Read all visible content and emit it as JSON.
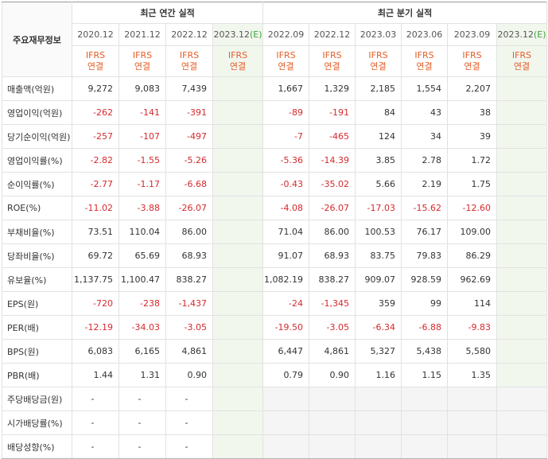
{
  "header": {
    "row_label": "주요재무정보",
    "annual_title": "최근 연간 실적",
    "quarter_title": "최근 분기 실적",
    "annual_periods": [
      "2020.12",
      "2021.12",
      "2022.12",
      "2023.12"
    ],
    "annual_estimate_mark": "(E)",
    "quarter_periods": [
      "2022.09",
      "2022.12",
      "2023.03",
      "2023.06",
      "2023.09",
      "2023.12"
    ],
    "quarter_estimate_mark": "(E)",
    "basis_line1": "IFRS",
    "basis_line2": "연결"
  },
  "rows": [
    {
      "label": "매출액(억원)",
      "annual": [
        "9,272",
        "9,083",
        "7,439",
        ""
      ],
      "quarter": [
        "1,667",
        "1,329",
        "2,185",
        "1,554",
        "2,207",
        ""
      ]
    },
    {
      "label": "영업이익(억원)",
      "annual": [
        "-262",
        "-141",
        "-391",
        ""
      ],
      "quarter": [
        "-89",
        "-191",
        "84",
        "43",
        "38",
        ""
      ]
    },
    {
      "label": "당기순이익(억원)",
      "annual": [
        "-257",
        "-107",
        "-497",
        ""
      ],
      "quarter": [
        "-7",
        "-465",
        "124",
        "34",
        "39",
        ""
      ]
    },
    {
      "label": "영업이익률(%)",
      "annual": [
        "-2.82",
        "-1.55",
        "-5.26",
        ""
      ],
      "quarter": [
        "-5.36",
        "-14.39",
        "3.85",
        "2.78",
        "1.72",
        ""
      ]
    },
    {
      "label": "순이익률(%)",
      "annual": [
        "-2.77",
        "-1.17",
        "-6.68",
        ""
      ],
      "quarter": [
        "-0.43",
        "-35.02",
        "5.66",
        "2.19",
        "1.75",
        ""
      ]
    },
    {
      "label": "ROE(%)",
      "annual": [
        "-11.02",
        "-3.88",
        "-26.07",
        ""
      ],
      "quarter": [
        "-4.08",
        "-26.07",
        "-17.03",
        "-15.62",
        "-12.60",
        ""
      ]
    },
    {
      "label": "부채비율(%)",
      "annual": [
        "73.51",
        "110.04",
        "86.00",
        ""
      ],
      "quarter": [
        "71.04",
        "86.00",
        "100.53",
        "76.17",
        "109.00",
        ""
      ]
    },
    {
      "label": "당좌비율(%)",
      "annual": [
        "69.72",
        "65.69",
        "68.93",
        ""
      ],
      "quarter": [
        "91.07",
        "68.93",
        "83.75",
        "79.83",
        "86.29",
        ""
      ]
    },
    {
      "label": "유보율(%)",
      "annual": [
        "1,137.75",
        "1,100.47",
        "838.27",
        ""
      ],
      "quarter": [
        "1,082.19",
        "838.27",
        "909.07",
        "928.59",
        "962.69",
        ""
      ]
    },
    {
      "label": "EPS(원)",
      "annual": [
        "-720",
        "-238",
        "-1,437",
        ""
      ],
      "quarter": [
        "-24",
        "-1,345",
        "359",
        "99",
        "114",
        ""
      ]
    },
    {
      "label": "PER(배)",
      "annual": [
        "-12.19",
        "-34.03",
        "-3.05",
        ""
      ],
      "quarter": [
        "-19.50",
        "-3.05",
        "-6.34",
        "-6.88",
        "-9.83",
        ""
      ]
    },
    {
      "label": "BPS(원)",
      "annual": [
        "6,083",
        "6,165",
        "4,861",
        ""
      ],
      "quarter": [
        "6,447",
        "4,861",
        "5,327",
        "5,438",
        "5,580",
        ""
      ]
    },
    {
      "label": "PBR(배)",
      "annual": [
        "1.44",
        "1.31",
        "0.90",
        ""
      ],
      "quarter": [
        "0.79",
        "0.90",
        "1.16",
        "1.15",
        "1.35",
        ""
      ]
    },
    {
      "label": "주당배당금(원)",
      "annual": [
        "-",
        "-",
        "-",
        ""
      ],
      "quarter": [
        "",
        "",
        "",
        "",
        "",
        ""
      ]
    },
    {
      "label": "시가배당률(%)",
      "annual": [
        "-",
        "-",
        "-",
        ""
      ],
      "quarter": [
        "",
        "",
        "",
        "",
        "",
        ""
      ]
    },
    {
      "label": "배당성향(%)",
      "annual": [
        "-",
        "-",
        "-",
        ""
      ],
      "quarter": [
        "",
        "",
        "",
        "",
        "",
        ""
      ]
    }
  ],
  "colors": {
    "negative": "#d6292d",
    "basis": "#e55d26",
    "estimate_bg": "#f2f7ee",
    "estimate_mark": "#3aa33a"
  }
}
